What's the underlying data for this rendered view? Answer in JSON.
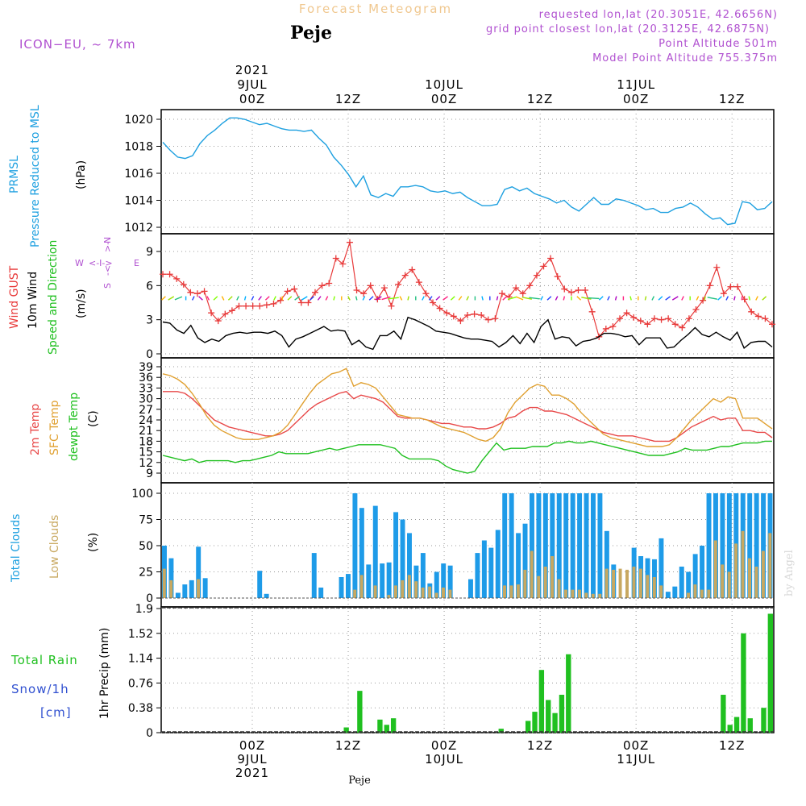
{
  "header": {
    "title": "Forecast Meteogram",
    "station": "Peje",
    "model": "ICON−EU,  ~  7km",
    "info": [
      "requested lon,lat (20.3051E, 42.6656N)",
      "grid point closest lon,lat (20.3125E, 42.6875N)",
      "Point Altitude 501m",
      "Model Point Altitude 755.375m"
    ],
    "watermark": "by Angel"
  },
  "time_axis": {
    "top_labels": [
      {
        "lines": [
          "2021",
          "9JUL",
          "00Z"
        ]
      },
      {
        "lines": [
          "12Z"
        ]
      },
      {
        "lines": [
          "10JUL",
          "00Z"
        ]
      },
      {
        "lines": [
          "12Z"
        ]
      },
      {
        "lines": [
          "11JUL",
          "00Z"
        ]
      },
      {
        "lines": [
          "12Z"
        ]
      }
    ],
    "bottom_labels": [
      {
        "lines": [
          "00Z",
          "9JUL",
          "2021"
        ]
      },
      {
        "lines": [
          "12Z"
        ]
      },
      {
        "lines": [
          "00Z",
          "10JUL"
        ]
      },
      {
        "lines": [
          "12Z"
        ]
      },
      {
        "lines": [
          "00Z",
          "11JUL"
        ]
      },
      {
        "lines": [
          "12Z"
        ]
      }
    ],
    "bottom_station": "Peje"
  },
  "panels": {
    "pressure": {
      "labels": [
        "PRMSL",
        "Pressure Reduced to MSL",
        "(hPa)"
      ],
      "ticks": [
        "1020",
        "1018",
        "1016",
        "1014",
        "1012"
      ]
    },
    "wind": {
      "labels": [
        "Wind GUST",
        "10m Wind",
        "Speed and Direction",
        "(m/s)"
      ],
      "ticks": [
        "9",
        "6",
        "3",
        "0"
      ],
      "compass": [
        "N",
        "W",
        "E",
        "S"
      ]
    },
    "temp": {
      "labels": [
        "2m Temp",
        "SFC Temp",
        "dewpt Temp",
        "(C)"
      ],
      "ticks": [
        "39",
        "36",
        "33",
        "30",
        "27",
        "24",
        "21",
        "18",
        "15",
        "12",
        "9"
      ]
    },
    "clouds": {
      "labels": [
        "Total Clouds",
        "Low Clouds",
        "(%)"
      ],
      "ticks": [
        "100",
        "75",
        "50",
        "25",
        "0"
      ]
    },
    "precip": {
      "labels": [
        "Total  Rain",
        "Snow/1h",
        "[cm]",
        "1hr Precip (mm)"
      ],
      "ticks": [
        "1.9",
        "1.52",
        "1.14",
        "0.76",
        "0.38",
        "0"
      ]
    }
  },
  "colors": {
    "pressure": "#1ea0e0",
    "gust": "#e83a3a",
    "wind": "#000000",
    "temp2m": "#e84848",
    "sfc": "#e0a030",
    "dewpt": "#20c020",
    "cloud_total": "#1e9be8",
    "cloud_low": "#c8a860",
    "rain": "#20c020",
    "snow_label": "#3050d0",
    "title": "#f0c890",
    "info": "#b050d0"
  },
  "chart_data": [
    {
      "type": "line",
      "name": "pressure",
      "x_hours_from_9jul_00z": [
        -12,
        66
      ],
      "ylim": [
        1011.5,
        1020.9
      ],
      "series": [
        {
          "name": "PRMSL",
          "values": [
            1018.3,
            1017.7,
            1017.2,
            1017.1,
            1017.3,
            1018.2,
            1018.8,
            1019.2,
            1019.7,
            1020.1,
            1020.1,
            1020.0,
            1019.8,
            1019.6,
            1019.7,
            1019.5,
            1019.3,
            1019.2,
            1019.2,
            1019.1,
            1019.2,
            1018.6,
            1018.1,
            1017.2,
            1016.6,
            1015.9,
            1015.0,
            1015.8,
            1014.4,
            1014.2,
            1014.5,
            1014.3,
            1015.0,
            1015.0,
            1015.1,
            1015.0,
            1014.7,
            1014.6,
            1014.7,
            1014.5,
            1014.6,
            1014.2,
            1013.9,
            1013.6,
            1013.6,
            1013.7,
            1014.8,
            1015.0,
            1014.7,
            1014.9,
            1014.5,
            1014.3,
            1014.1,
            1013.8,
            1014.0,
            1013.5,
            1013.2,
            1013.7,
            1014.2,
            1013.7,
            1013.7,
            1014.1,
            1014.0,
            1013.8,
            1013.6,
            1013.3,
            1013.4,
            1013.1,
            1013.1,
            1013.4,
            1013.5,
            1013.8,
            1013.5,
            1013.0,
            1012.6,
            1012.7,
            1012.2,
            1012.3,
            1013.9,
            1013.8,
            1013.3,
            1013.4,
            1013.9
          ]
        }
      ]
    },
    {
      "type": "line",
      "name": "wind",
      "ylim": [
        0,
        10.8
      ],
      "series": [
        {
          "name": "Wind GUST",
          "values": [
            7.0,
            7.0,
            6.6,
            6.1,
            5.4,
            5.3,
            5.5,
            3.6,
            2.9,
            3.5,
            3.8,
            4.2,
            4.2,
            4.2,
            4.2,
            4.3,
            4.4,
            4.7,
            5.5,
            5.7,
            4.5,
            4.5,
            5.4,
            6.0,
            6.2,
            8.4,
            7.9,
            9.8,
            5.6,
            5.3,
            6.0,
            4.8,
            5.8,
            4.2,
            6.1,
            6.9,
            7.4,
            6.3,
            5.3,
            4.5,
            4.0,
            3.6,
            3.3,
            2.9,
            3.4,
            3.5,
            3.4,
            3.0,
            3.1,
            5.3,
            5.0,
            5.8,
            5.3,
            6.0,
            6.9,
            7.7,
            8.4,
            6.8,
            5.7,
            5.4,
            5.6,
            5.6,
            3.7,
            1.5,
            2.2,
            2.4,
            3.1,
            3.6,
            3.2,
            2.9,
            2.6,
            3.1,
            3.0,
            3.1,
            2.6,
            2.3,
            3.1,
            3.9,
            4.7,
            6.0,
            7.6,
            5.3,
            5.9,
            5.9,
            4.8,
            3.7,
            3.3,
            3.1,
            2.6
          ]
        },
        {
          "name": "10m Wind",
          "values": [
            2.8,
            2.7,
            2.1,
            1.8,
            2.5,
            1.4,
            1.0,
            1.3,
            1.1,
            1.6,
            1.8,
            1.9,
            1.8,
            1.9,
            1.9,
            1.8,
            2.0,
            1.6,
            0.6,
            1.3,
            1.5,
            1.8,
            2.1,
            2.4,
            2.0,
            2.1,
            2.0,
            0.8,
            1.2,
            0.6,
            0.4,
            1.6,
            1.6,
            2.0,
            1.3,
            3.2,
            3.0,
            2.7,
            2.4,
            2.0,
            1.9,
            1.8,
            1.6,
            1.4,
            1.3,
            1.3,
            1.2,
            1.1,
            0.6,
            1.0,
            1.6,
            0.9,
            1.8,
            1.0,
            2.4,
            3.0,
            1.3,
            1.5,
            1.4,
            0.7,
            1.1,
            1.2,
            1.4,
            1.8,
            1.8,
            1.7,
            1.5,
            1.6,
            0.8,
            1.4,
            1.4,
            1.4,
            0.5,
            0.6,
            1.2,
            1.7,
            2.3,
            1.7,
            1.5,
            1.9,
            1.5,
            1.2,
            1.9,
            0.5,
            1.0,
            1.1,
            1.1,
            0.6
          ]
        }
      ]
    },
    {
      "type": "line",
      "name": "temperature",
      "ylim": [
        7.7,
        40.2
      ],
      "series": [
        {
          "name": "2m Temp",
          "values": [
            32,
            32,
            32,
            31.5,
            30,
            28,
            26,
            24,
            23,
            22,
            21.5,
            21,
            20.5,
            20,
            19.5,
            19.5,
            20,
            21,
            23,
            25,
            27,
            28.5,
            29.5,
            30.5,
            31.5,
            32,
            30,
            31,
            30.5,
            30,
            29,
            27,
            25,
            24.5,
            24.5,
            24.5,
            24,
            23.5,
            23,
            23,
            22.5,
            22,
            22,
            21.5,
            21.5,
            22,
            23,
            24.5,
            25,
            26.5,
            27.5,
            27.5,
            26.5,
            26.5,
            26,
            25.5,
            24.5,
            23.5,
            22.5,
            21.5,
            20.5,
            20,
            19.5,
            19.5,
            19.5,
            19,
            18.5,
            18,
            18,
            18,
            19,
            20.5,
            22,
            23,
            24,
            25,
            24,
            24.5,
            24.5,
            21,
            21,
            20.5,
            20.5,
            19
          ]
        },
        {
          "name": "SFC Temp",
          "values": [
            37,
            36.5,
            35.5,
            34,
            31.5,
            28.5,
            25,
            22.5,
            21,
            20,
            19,
            18.5,
            18.5,
            18.5,
            19,
            19.5,
            20.5,
            22.5,
            25.5,
            28.5,
            31.5,
            34,
            35.5,
            37,
            37.5,
            38.5,
            33.5,
            34.5,
            34,
            33,
            30.5,
            28,
            25.5,
            25,
            24.5,
            24.5,
            24,
            23,
            22,
            21.5,
            21,
            20.5,
            19.5,
            18.5,
            18,
            19,
            21.5,
            26,
            29,
            31,
            33,
            34,
            33.5,
            31,
            31,
            30,
            28.5,
            26,
            24,
            22,
            20,
            19,
            18.5,
            18,
            17.5,
            17,
            16.5,
            16.5,
            16.5,
            17,
            19,
            21.5,
            24,
            26,
            28,
            30,
            29,
            30.5,
            30,
            24.5,
            24.5,
            24.5,
            23,
            21.5
          ]
        },
        {
          "name": "dewpt Temp",
          "values": [
            14,
            13.5,
            13,
            12.5,
            13,
            12,
            12.5,
            12.5,
            12.5,
            12.5,
            12,
            12.5,
            12.5,
            13,
            13.5,
            14,
            15,
            14.5,
            14.5,
            14.5,
            14.5,
            15,
            15.5,
            16,
            15.5,
            16,
            16.5,
            17,
            17,
            17,
            17,
            16.5,
            16,
            14,
            13,
            13,
            13,
            13,
            12.5,
            11,
            10,
            9.5,
            9,
            9.5,
            12.5,
            15,
            17.5,
            15.5,
            16,
            16,
            16,
            16.5,
            16.5,
            16.5,
            17.5,
            17.5,
            18,
            17.5,
            17.5,
            18,
            17.5,
            17,
            16.5,
            16,
            15.5,
            15,
            14.5,
            14,
            14,
            14,
            14.5,
            15,
            16,
            15.5,
            15.5,
            15.5,
            16,
            16.5,
            16.5,
            17,
            17.5,
            17.5,
            17.5,
            18,
            18
          ]
        }
      ]
    },
    {
      "type": "bar",
      "name": "clouds",
      "ylim": [
        0,
        100
      ],
      "series": [
        {
          "name": "Total Clouds",
          "values": [
            50,
            38,
            5,
            13,
            17,
            49,
            19,
            0,
            0,
            0,
            0,
            0,
            0,
            0,
            26,
            4,
            0,
            0,
            0,
            0,
            0,
            0,
            43,
            10,
            0,
            0,
            20,
            23,
            100,
            86,
            32,
            88,
            33,
            34,
            82,
            75,
            62,
            31,
            43,
            14,
            25,
            33,
            31,
            0,
            0,
            18,
            43,
            55,
            48,
            65,
            100,
            100,
            62,
            71,
            100,
            100,
            100,
            100,
            100,
            100,
            100,
            100,
            100,
            100,
            100,
            64,
            32,
            0,
            0,
            48,
            40,
            38,
            37,
            57,
            6,
            11,
            30,
            25,
            42,
            50,
            100,
            100,
            100,
            100,
            100,
            100,
            100,
            100,
            100,
            100
          ]
        },
        {
          "name": "Low Clouds",
          "values": [
            28,
            17,
            0,
            0,
            0,
            18,
            0,
            0,
            0,
            0,
            0,
            0,
            0,
            0,
            0,
            0,
            0,
            0,
            0,
            0,
            0,
            0,
            0,
            0,
            0,
            0,
            0,
            0,
            8,
            22,
            0,
            12,
            0,
            3,
            12,
            17,
            22,
            16,
            10,
            11,
            5,
            10,
            8,
            0,
            0,
            0,
            0,
            0,
            0,
            0,
            12,
            12,
            13,
            27,
            45,
            21,
            30,
            40,
            18,
            8,
            8,
            8,
            5,
            4,
            4,
            28,
            27,
            28,
            27,
            30,
            28,
            22,
            20,
            12,
            0,
            0,
            0,
            5,
            13,
            8,
            8,
            55,
            32,
            25,
            52,
            64,
            38,
            30,
            45,
            62,
            67
          ]
        }
      ]
    },
    {
      "type": "bar",
      "name": "precip",
      "ylim": [
        0,
        1.9
      ],
      "series": [
        {
          "name": "1hr Precip",
          "values": [
            0,
            0,
            0,
            0,
            0,
            0,
            0,
            0,
            0,
            0,
            0,
            0,
            0,
            0,
            0,
            0,
            0,
            0,
            0,
            0,
            0,
            0,
            0,
            0,
            0,
            0,
            0,
            0.08,
            0,
            0.64,
            0,
            0,
            0.2,
            0.12,
            0.22,
            0,
            0,
            0,
            0,
            0,
            0,
            0,
            0,
            0,
            0,
            0,
            0,
            0,
            0,
            0,
            0.06,
            0,
            0,
            0,
            0.18,
            0.32,
            0.96,
            0.5,
            0.3,
            0.58,
            1.2,
            0,
            0,
            0,
            0,
            0,
            0,
            0,
            0,
            0,
            0,
            0,
            0,
            0,
            0,
            0,
            0,
            0,
            0,
            0,
            0,
            0,
            0,
            0.58,
            0.12,
            0.24,
            1.52,
            0.22,
            0,
            0.38,
            1.82
          ]
        }
      ]
    }
  ]
}
